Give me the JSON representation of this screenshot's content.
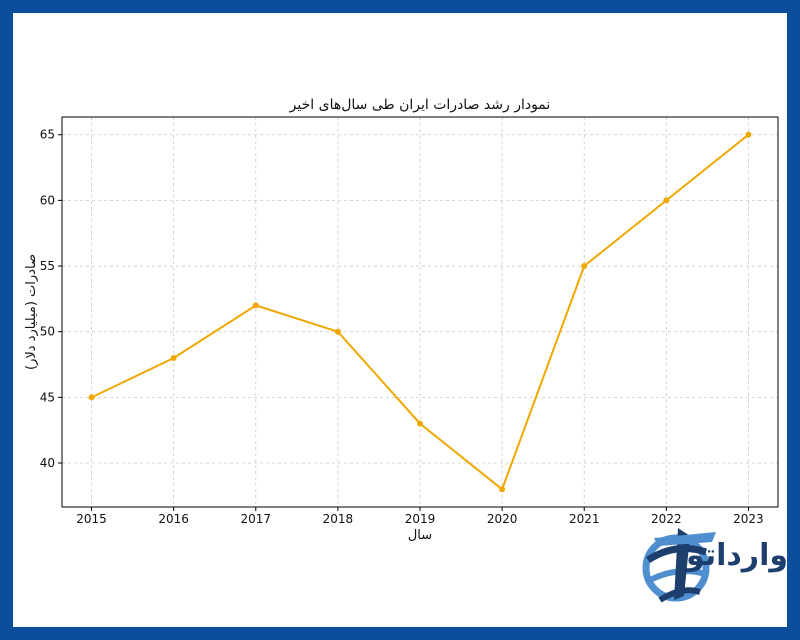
{
  "colors": {
    "frame": "#0b4f9c",
    "line": "#f0a800",
    "grid": "#c8c8c8",
    "logo_dark": "#1d3f6e",
    "logo_light": "#4f8fd0"
  },
  "chart_data": {
    "type": "line",
    "title": "نمودار رشد صادرات ایران طی سال‌های اخیر",
    "xlabel": "سال",
    "ylabel": "صادرات (میلیارد دلار)",
    "x": [
      2015,
      2016,
      2017,
      2018,
      2019,
      2020,
      2021,
      2022,
      2023
    ],
    "series": [
      {
        "values": [
          45,
          48,
          52,
          50,
          43,
          38,
          55,
          60,
          65
        ]
      }
    ],
    "yticks": [
      40,
      45,
      50,
      55,
      60,
      65
    ],
    "ylim": [
      36.65,
      66.35
    ],
    "grid": true,
    "marker": "circle"
  },
  "watermark": {
    "text": "وارداتو",
    "icon": "globe-plane-logo-icon"
  }
}
